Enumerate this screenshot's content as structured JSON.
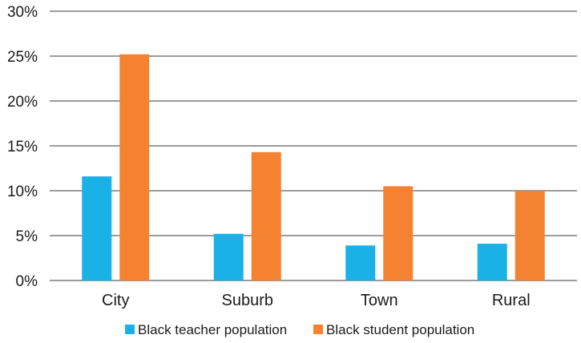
{
  "chart_data": {
    "type": "bar",
    "categories": [
      "City",
      "Suburb",
      "Town",
      "Rural"
    ],
    "series": [
      {
        "name": "Black teacher population",
        "values": [
          11.6,
          5.2,
          3.9,
          4.1
        ],
        "color": "#1ab2e6"
      },
      {
        "name": "Black student population",
        "values": [
          25.2,
          14.3,
          10.5,
          10.0
        ],
        "color": "#f58231"
      }
    ],
    "ylim": [
      0,
      30
    ],
    "yticks": [
      "0%",
      "5%",
      "10%",
      "15%",
      "20%",
      "25%",
      "30%"
    ],
    "ytick_values": [
      0,
      5,
      10,
      15,
      20,
      25,
      30
    ],
    "grid": true,
    "legend": "bottom"
  }
}
